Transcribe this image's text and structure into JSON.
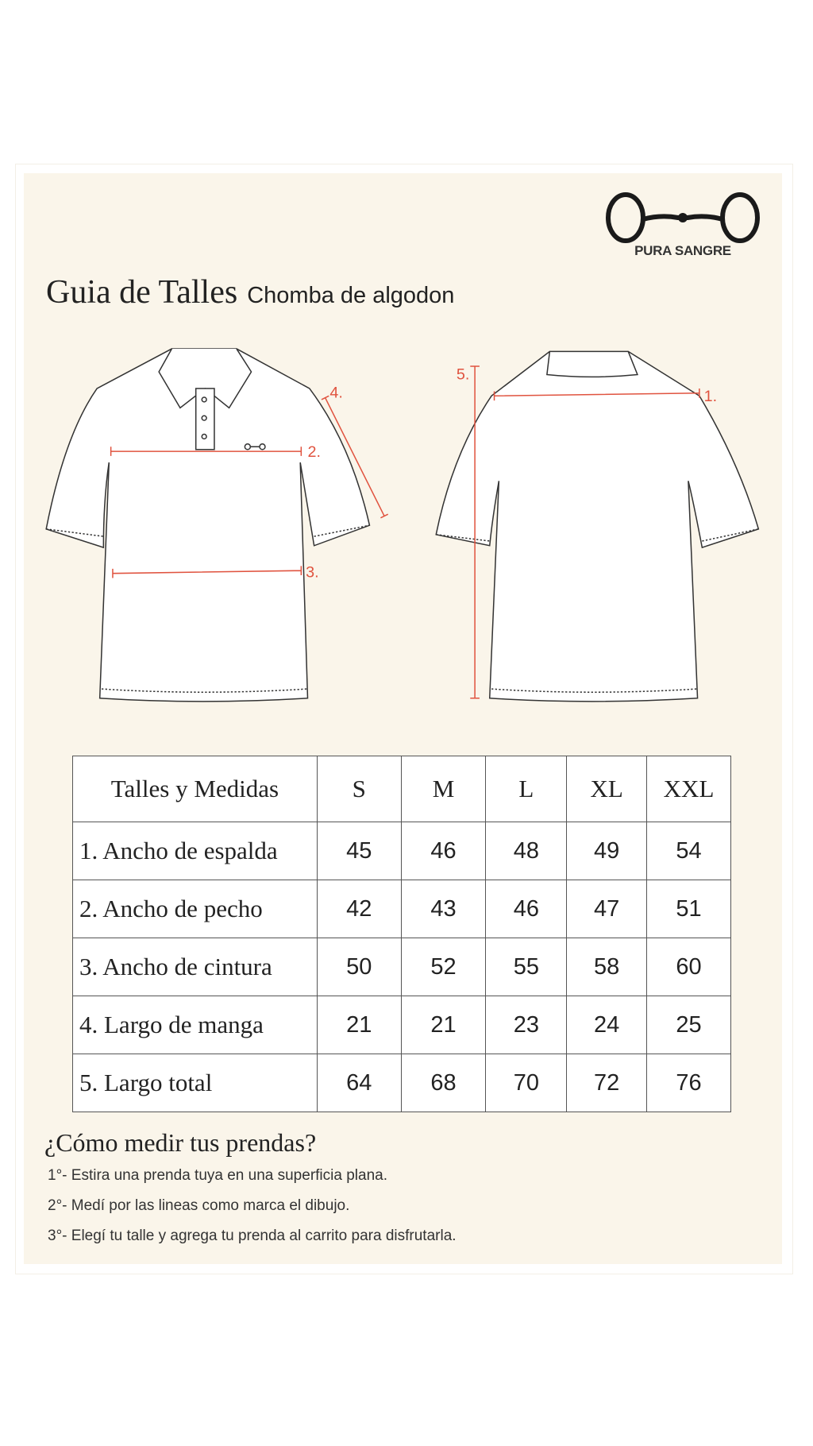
{
  "brand": {
    "name": "PURA SANGRE"
  },
  "header": {
    "title": "Guia de Talles",
    "subtitle": "Chomba de algodon"
  },
  "diagram": {
    "front_labels": [
      "2.",
      "3.",
      "4."
    ],
    "back_labels": [
      "1.",
      "5."
    ],
    "measure_color": "#e0533f"
  },
  "table": {
    "header": [
      "Talles y Medidas",
      "S",
      "M",
      "L",
      "XL",
      "XXL"
    ],
    "rows": [
      {
        "label": "1. Ancho de espalda",
        "values": [
          "45",
          "46",
          "48",
          "49",
          "54"
        ]
      },
      {
        "label": "2. Ancho de pecho",
        "values": [
          "42",
          "43",
          "46",
          "47",
          "51"
        ]
      },
      {
        "label": "3. Ancho de cintura",
        "values": [
          "50",
          "52",
          "55",
          "58",
          "60"
        ]
      },
      {
        "label": "4. Largo de manga",
        "values": [
          "21",
          "21",
          "23",
          "24",
          "25"
        ]
      },
      {
        "label": "5. Largo total",
        "values": [
          "64",
          "68",
          "70",
          "72",
          "76"
        ]
      }
    ]
  },
  "instructions": {
    "heading": "¿Cómo medir tus prendas?",
    "steps": [
      "1°- Estira una prenda tuya en una superficia plana.",
      "2°- Medí por las lineas como marca el dibujo.",
      "3°- Elegí tu talle y agrega tu prenda al carrito para disfrutarla."
    ]
  }
}
